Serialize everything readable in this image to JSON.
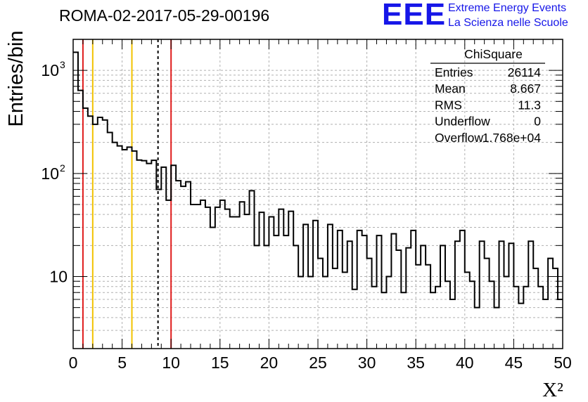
{
  "header": {
    "title": "ROMA-02-2017-05-29-00196",
    "logo_text": "EEE",
    "logo_line1": "Extreme Energy Events",
    "logo_line2": "La Scienza nelle Scuole"
  },
  "colors": {
    "logo": "#1616e8",
    "histogram": "#000000",
    "marker_red": "#e01b1b",
    "marker_yellow": "#f2c200",
    "marker_mean": "#000000",
    "grid": "#b0b0b0"
  },
  "chart_data": {
    "type": "histogram",
    "title": "ROMA-02-2017-05-29-00196",
    "xlabel": "X²",
    "ylabel": "Entries/bin",
    "xlim": [
      0,
      50
    ],
    "ylim": [
      2,
      2000
    ],
    "y_scale": "log",
    "grid": true,
    "bin_width": 0.5,
    "x_ticks": [
      0,
      5,
      10,
      15,
      20,
      25,
      30,
      35,
      40,
      45,
      50
    ],
    "y_ticks": [
      {
        "value": 10,
        "label": "10",
        "exp": ""
      },
      {
        "value": 100,
        "label": "10",
        "exp": "2"
      },
      {
        "value": 1000,
        "label": "10",
        "exp": "3"
      }
    ],
    "bin_contents": [
      1500,
      640,
      430,
      360,
      300,
      350,
      330,
      250,
      200,
      185,
      170,
      180,
      165,
      135,
      133,
      125,
      134,
      70,
      115,
      55,
      120,
      85,
      75,
      83,
      50,
      50,
      55,
      47,
      30,
      47,
      55,
      45,
      38,
      38,
      53,
      40,
      68,
      20,
      42,
      20,
      38,
      25,
      45,
      25,
      43,
      20,
      10,
      32,
      10,
      35,
      15,
      10,
      32,
      12,
      28,
      11,
      22,
      7.5,
      28,
      25,
      15,
      8,
      25,
      7,
      10,
      26,
      18,
      7,
      19,
      28,
      13,
      20,
      13,
      7,
      8,
      20,
      9,
      6,
      22,
      28,
      11,
      9,
      5,
      22,
      15,
      9,
      5,
      22,
      10,
      21,
      8,
      5.5,
      8,
      22,
      12,
      8,
      6,
      15,
      12,
      6
    ],
    "vertical_lines": [
      {
        "x": 1.0,
        "color": "red",
        "style": "solid"
      },
      {
        "x": 2.0,
        "color": "yellow",
        "style": "solid"
      },
      {
        "x": 6.0,
        "color": "yellow",
        "style": "solid"
      },
      {
        "x": 8.667,
        "color": "black",
        "style": "dashed"
      },
      {
        "x": 10.0,
        "color": "red",
        "style": "solid"
      }
    ],
    "stats_box": {
      "title": "ChiSquare",
      "rows": [
        {
          "label": "Entries",
          "value": "26114"
        },
        {
          "label": "Mean",
          "value": "8.667"
        },
        {
          "label": "RMS",
          "value": "11.3"
        },
        {
          "label": "Underflow",
          "value": "0"
        },
        {
          "label": "Overflow",
          "value": "1.768e+04"
        }
      ]
    }
  }
}
